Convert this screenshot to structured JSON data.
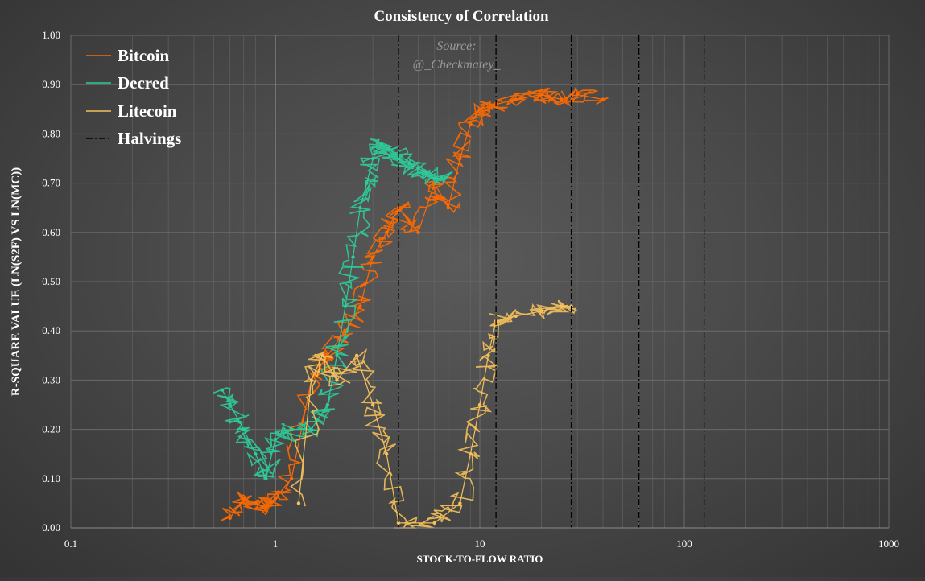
{
  "chart_data": {
    "type": "scatter",
    "title": "Consistency of Correlation",
    "xlabel": "STOCK-TO-FLOW RATIO",
    "ylabel": "R-SQUARE VALUE (LN(S2F) VS LN(MC))",
    "x_scale": "log",
    "xlim": [
      0.1,
      1000
    ],
    "ylim": [
      0,
      1
    ],
    "x_ticks": [
      "0.1",
      "1",
      "10",
      "100",
      "1000"
    ],
    "y_ticks": [
      "0.00",
      "0.10",
      "0.20",
      "0.30",
      "0.40",
      "0.50",
      "0.60",
      "0.70",
      "0.80",
      "0.90",
      "1.00"
    ],
    "grid": true,
    "legend_position": "top-left",
    "annotation": {
      "line1": "Source:",
      "line2": "@_Checkmatey_"
    },
    "series": [
      {
        "name": "Bitcoin",
        "color": "#ff6a00",
        "x": [
          0.6,
          0.7,
          0.8,
          0.9,
          1.0,
          1.2,
          1.5,
          1.8,
          2.2,
          2.6,
          3.0,
          3.5,
          4.0,
          5.0,
          6.0,
          7.0,
          8.0,
          9.0,
          10.0,
          12.0,
          15.0,
          20.0,
          25.0,
          30.0,
          40.0
        ],
        "y": [
          0.02,
          0.06,
          0.05,
          0.04,
          0.06,
          0.1,
          0.3,
          0.35,
          0.4,
          0.45,
          0.55,
          0.6,
          0.65,
          0.6,
          0.7,
          0.65,
          0.75,
          0.82,
          0.85,
          0.86,
          0.87,
          0.88,
          0.87,
          0.88,
          0.87
        ]
      },
      {
        "name": "Decred",
        "color": "#2ecc9a",
        "x": [
          0.55,
          0.6,
          0.7,
          0.8,
          0.9,
          1.0,
          1.2,
          1.5,
          1.8,
          2.0,
          2.2,
          2.4,
          2.6,
          2.8,
          3.0,
          3.3,
          3.6,
          4.0,
          4.5,
          5.0,
          5.5,
          6.0,
          6.5
        ],
        "y": [
          0.28,
          0.25,
          0.2,
          0.15,
          0.1,
          0.18,
          0.2,
          0.2,
          0.25,
          0.35,
          0.45,
          0.55,
          0.65,
          0.7,
          0.75,
          0.78,
          0.77,
          0.75,
          0.74,
          0.73,
          0.72,
          0.71,
          0.71
        ]
      },
      {
        "name": "Litecoin",
        "color": "#f5c15a",
        "x": [
          1.3,
          1.5,
          1.7,
          2.0,
          2.5,
          3.0,
          3.5,
          4.0,
          6.0,
          8.0,
          9.0,
          10.0,
          11.0,
          12.0,
          15.0,
          20.0,
          25.0,
          28.0
        ],
        "y": [
          0.05,
          0.3,
          0.35,
          0.3,
          0.35,
          0.25,
          0.15,
          0.01,
          0.01,
          0.05,
          0.15,
          0.25,
          0.35,
          0.42,
          0.43,
          0.44,
          0.45,
          0.45
        ]
      },
      {
        "name": "Halvings",
        "color": "#000000",
        "style": "dash-dot",
        "x": [
          4.0,
          12.0,
          28.0,
          60.0,
          125.0
        ]
      }
    ]
  }
}
